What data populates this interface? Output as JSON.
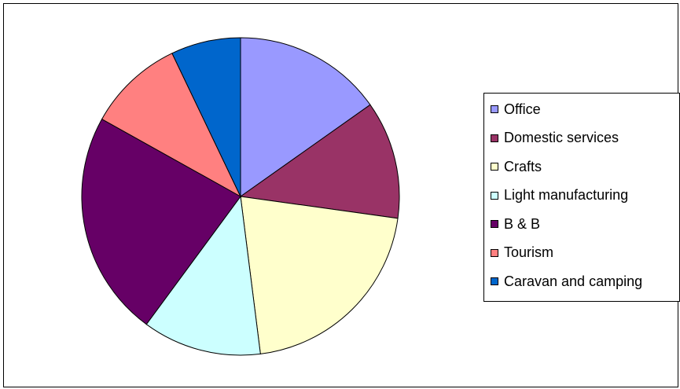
{
  "chart_data": {
    "type": "pie",
    "title": "",
    "legend_position": "right",
    "categories": [
      "Office",
      "Domestic services",
      "Crafts",
      "Light manufacturing",
      "B & B",
      "Tourism",
      "Caravan and camping"
    ],
    "values": [
      15.2,
      12.0,
      20.8,
      12.1,
      23.0,
      9.8,
      7.1
    ],
    "colors": [
      "#9999ff",
      "#993366",
      "#ffffcc",
      "#ccffff",
      "#660066",
      "#ff8080",
      "#0066cc"
    ]
  }
}
